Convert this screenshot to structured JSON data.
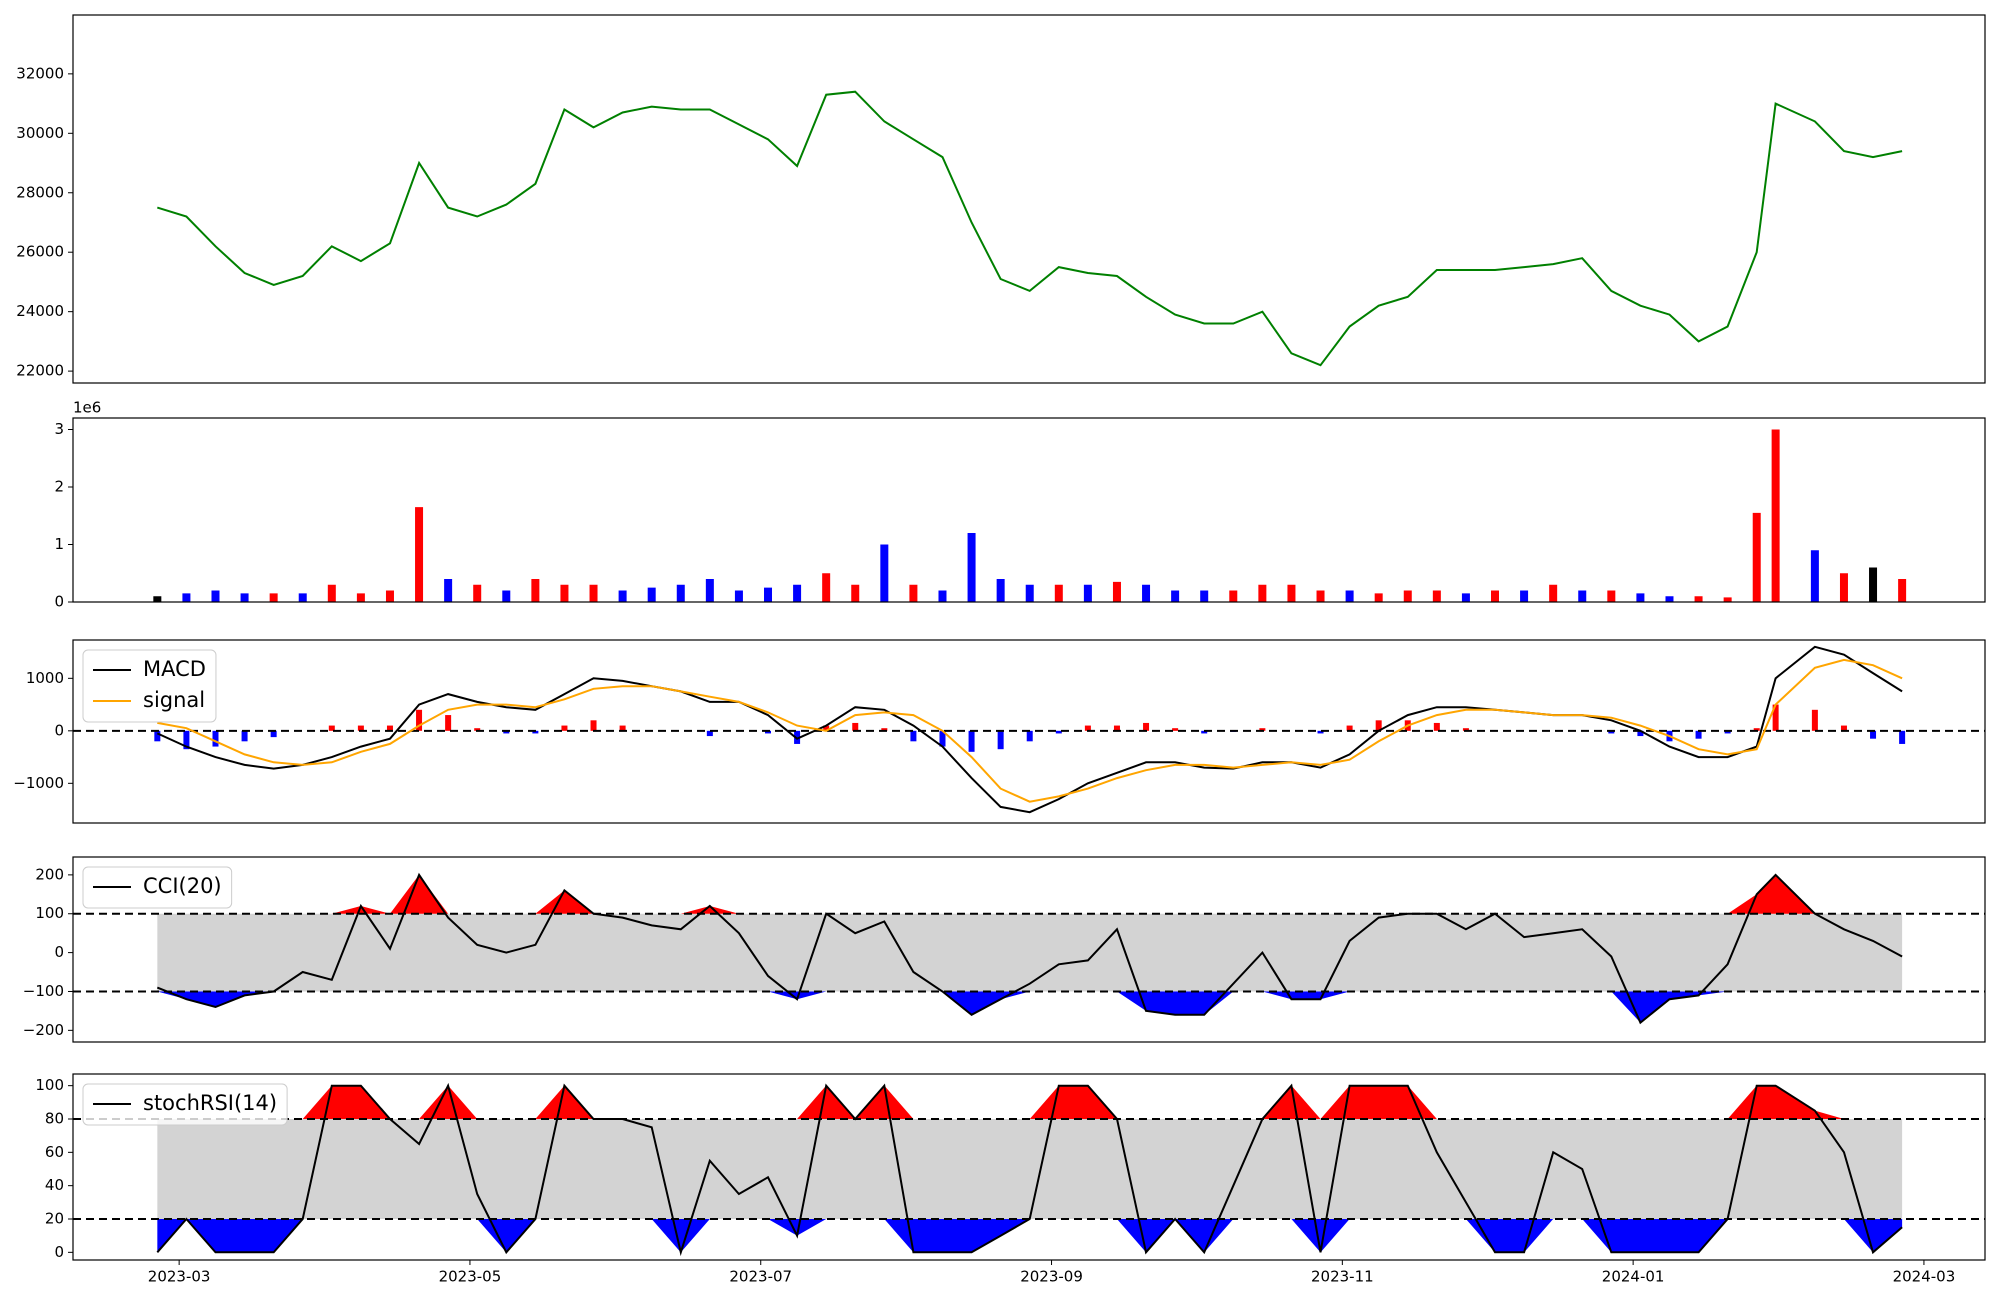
{
  "chart_data": {
    "type": "multi-panel",
    "x": [
      -0.15,
      0.05,
      0.25,
      0.45,
      0.65,
      0.85,
      1.05,
      1.25,
      1.45,
      1.65,
      1.85,
      2.05,
      2.25,
      2.45,
      2.65,
      2.85,
      3.05,
      3.25,
      3.45,
      3.65,
      3.85,
      4.05,
      4.25,
      4.45,
      4.65,
      4.85,
      5.05,
      5.25,
      5.45,
      5.65,
      5.85,
      6.05,
      6.25,
      6.45,
      6.65,
      6.85,
      7.05,
      7.25,
      7.45,
      7.65,
      7.85,
      8.05,
      8.25,
      8.45,
      8.65,
      8.85,
      9.05,
      9.25,
      9.45,
      9.65,
      9.85,
      10.05,
      10.25,
      10.45,
      10.65,
      10.85,
      10.98,
      11.25,
      11.45,
      11.65,
      11.85
    ],
    "xlim": [
      -0.73,
      12.42
    ],
    "xticks": [
      {
        "value": 0,
        "label": "2023-03"
      },
      {
        "value": 2,
        "label": "2023-05"
      },
      {
        "value": 4,
        "label": "2023-07"
      },
      {
        "value": 6,
        "label": "2023-09"
      },
      {
        "value": 8,
        "label": "2023-11"
      },
      {
        "value": 10,
        "label": "2024-01"
      },
      {
        "value": 12,
        "label": "2024-03"
      }
    ],
    "panels": [
      {
        "type": "line",
        "series": [
          {
            "color": "green",
            "values": [
              27500,
              27200,
              26200,
              25300,
              24900,
              25200,
              26200,
              25700,
              26300,
              29000,
              27500,
              27200,
              27600,
              28300,
              30800,
              30200,
              30700,
              30900,
              30800,
              30800,
              30300,
              29800,
              28900,
              31300,
              31400,
              30400,
              29800,
              29200,
              27000,
              25100,
              24700,
              25500,
              25300,
              25200,
              24500,
              23900,
              23600,
              23600,
              24000,
              22600,
              22200,
              23500,
              24200,
              24500,
              25400,
              25400,
              25400,
              25500,
              25600,
              25800,
              24700,
              24200,
              23900,
              23000,
              23500,
              26000,
              31000,
              30400,
              29400,
              29200,
              29400
            ]
          }
        ],
        "ylim": [
          21600,
          33980
        ],
        "yticks": [
          22000,
          24000,
          26000,
          28000,
          30000,
          32000
        ]
      },
      {
        "type": "bar",
        "offset_label": "1e6",
        "values": [
          0.1,
          0.15,
          0.2,
          0.15,
          0.15,
          0.15,
          0.3,
          0.15,
          0.2,
          1.65,
          0.4,
          0.3,
          0.2,
          0.4,
          0.3,
          0.3,
          0.2,
          0.25,
          0.3,
          0.4,
          0.2,
          0.25,
          0.3,
          0.5,
          0.3,
          1.0,
          0.3,
          0.2,
          1.2,
          0.4,
          0.3,
          0.3,
          0.3,
          0.35,
          0.3,
          0.2,
          0.2,
          0.2,
          0.3,
          0.3,
          0.2,
          0.2,
          0.15,
          0.2,
          0.2,
          0.15,
          0.2,
          0.2,
          0.3,
          0.2,
          0.2,
          0.15,
          0.1,
          0.1,
          0.08,
          1.55,
          3.0,
          0.9,
          0.5,
          0.6,
          0.4
        ],
        "colors": [
          "black",
          "blue",
          "blue",
          "blue",
          "red",
          "blue",
          "red",
          "red",
          "red",
          "red",
          "blue",
          "red",
          "blue",
          "red",
          "red",
          "red",
          "blue",
          "blue",
          "blue",
          "blue",
          "blue",
          "blue",
          "blue",
          "red",
          "red",
          "blue",
          "red",
          "blue",
          "blue",
          "blue",
          "blue",
          "red",
          "blue",
          "red",
          "blue",
          "blue",
          "blue",
          "red",
          "red",
          "red",
          "red",
          "blue",
          "red",
          "red",
          "red",
          "blue",
          "red",
          "blue",
          "red",
          "blue",
          "red",
          "blue",
          "blue",
          "red",
          "red",
          "red",
          "red",
          "blue",
          "red",
          "black",
          "red"
        ],
        "ylim": [
          0,
          3.2
        ],
        "yticks": [
          0,
          1,
          2,
          3
        ]
      },
      {
        "type": "macd",
        "legend": "upper left",
        "series": [
          {
            "name": "MACD",
            "color": "black",
            "values": [
              -50,
              -300,
              -500,
              -650,
              -720,
              -650,
              -500,
              -300,
              -150,
              500,
              700,
              550,
              450,
              400,
              700,
              1000,
              950,
              850,
              750,
              550,
              550,
              300,
              -150,
              100,
              450,
              400,
              100,
              -300,
              -900,
              -1450,
              -1550,
              -1300,
              -1000,
              -800,
              -600,
              -600,
              -700,
              -720,
              -600,
              -600,
              -700,
              -450,
              0,
              300,
              450,
              450,
              400,
              350,
              300,
              300,
              200,
              0,
              -300,
              -500,
              -500,
              -300,
              1000,
              1600,
              1450,
              1100,
              750
            ]
          },
          {
            "name": "signal",
            "color": "orange",
            "values": [
              150,
              50,
              -200,
              -450,
              -600,
              -650,
              -600,
              -400,
              -250,
              100,
              400,
              500,
              500,
              450,
              600,
              800,
              850,
              850,
              750,
              650,
              550,
              350,
              100,
              0,
              300,
              350,
              300,
              0,
              -500,
              -1100,
              -1350,
              -1250,
              -1100,
              -900,
              -750,
              -650,
              -650,
              -700,
              -650,
              -600,
              -650,
              -550,
              -200,
              100,
              300,
              400,
              400,
              350,
              300,
              300,
              250,
              100,
              -100,
              -350,
              -450,
              -350,
              500,
              1200,
              1350,
              1250,
              1000
            ]
          }
        ],
        "histogram": {
          "pos_color": "red",
          "neg_color": "blue",
          "values": [
            -200,
            -350,
            -300,
            -200,
            -120,
            0,
            100,
            100,
            100,
            400,
            300,
            50,
            -50,
            -50,
            100,
            200,
            100,
            0,
            0,
            -100,
            0,
            -50,
            -250,
            100,
            150,
            50,
            -200,
            -300,
            -400,
            -350,
            -200,
            -50,
            100,
            100,
            150,
            50,
            -50,
            -20,
            50,
            0,
            -50,
            100,
            200,
            200,
            150,
            50,
            0,
            0,
            0,
            0,
            -50,
            -100,
            -200,
            -150,
            -50,
            50,
            500,
            400,
            100,
            -150,
            -250
          ]
        },
        "hlines": [
          0
        ],
        "ylim": [
          -1756,
          1730
        ],
        "yticks": [
          {
            "value": -1000,
            "label": "−1000"
          },
          0,
          1000
        ]
      },
      {
        "type": "band",
        "legend": "upper left",
        "band_color": "lightgray",
        "upper_color": "red",
        "lower_color": "blue",
        "series": [
          {
            "name": "CCI(20)",
            "color": "black",
            "values": [
              -90,
              -120,
              -140,
              -110,
              -100,
              -50,
              -70,
              120,
              10,
              200,
              90,
              20,
              0,
              20,
              160,
              100,
              90,
              70,
              60,
              120,
              50,
              -60,
              -120,
              100,
              50,
              80,
              -50,
              -100,
              -160,
              -120,
              -80,
              -30,
              -20,
              60,
              -150,
              -160,
              -160,
              -80,
              0,
              -120,
              -120,
              30,
              90,
              100,
              100,
              60,
              100,
              40,
              50,
              60,
              -10,
              -180,
              -120,
              -110,
              -30,
              150,
              200,
              100,
              60,
              30,
              -10
            ]
          }
        ],
        "hlines": [
          100,
          -100
        ],
        "ylim": [
          -230,
          246
        ],
        "yticks": [
          {
            "value": -200,
            "label": "−200"
          },
          {
            "value": -100,
            "label": "−100"
          },
          0,
          100,
          200
        ]
      },
      {
        "type": "band",
        "legend": "upper left",
        "band_color": "lightgray",
        "upper_color": "red",
        "lower_color": "blue",
        "series": [
          {
            "name": "stochRSI(14)",
            "color": "black",
            "values": [
              0,
              20,
              0,
              0,
              0,
              20,
              100,
              100,
              80,
              65,
              100,
              35,
              0,
              20,
              100,
              80,
              80,
              75,
              0,
              55,
              35,
              45,
              10,
              100,
              80,
              100,
              0,
              0,
              0,
              10,
              20,
              100,
              100,
              80,
              0,
              20,
              0,
              40,
              80,
              100,
              0,
              100,
              100,
              100,
              60,
              30,
              0,
              0,
              60,
              50,
              0,
              0,
              0,
              0,
              20,
              100,
              100,
              85,
              60,
              0,
              15
            ]
          }
        ],
        "hlines": [
          80,
          20
        ],
        "ylim": [
          -4.6,
          107
        ],
        "yticks": [
          0,
          20,
          40,
          60,
          80,
          100
        ]
      }
    ]
  }
}
